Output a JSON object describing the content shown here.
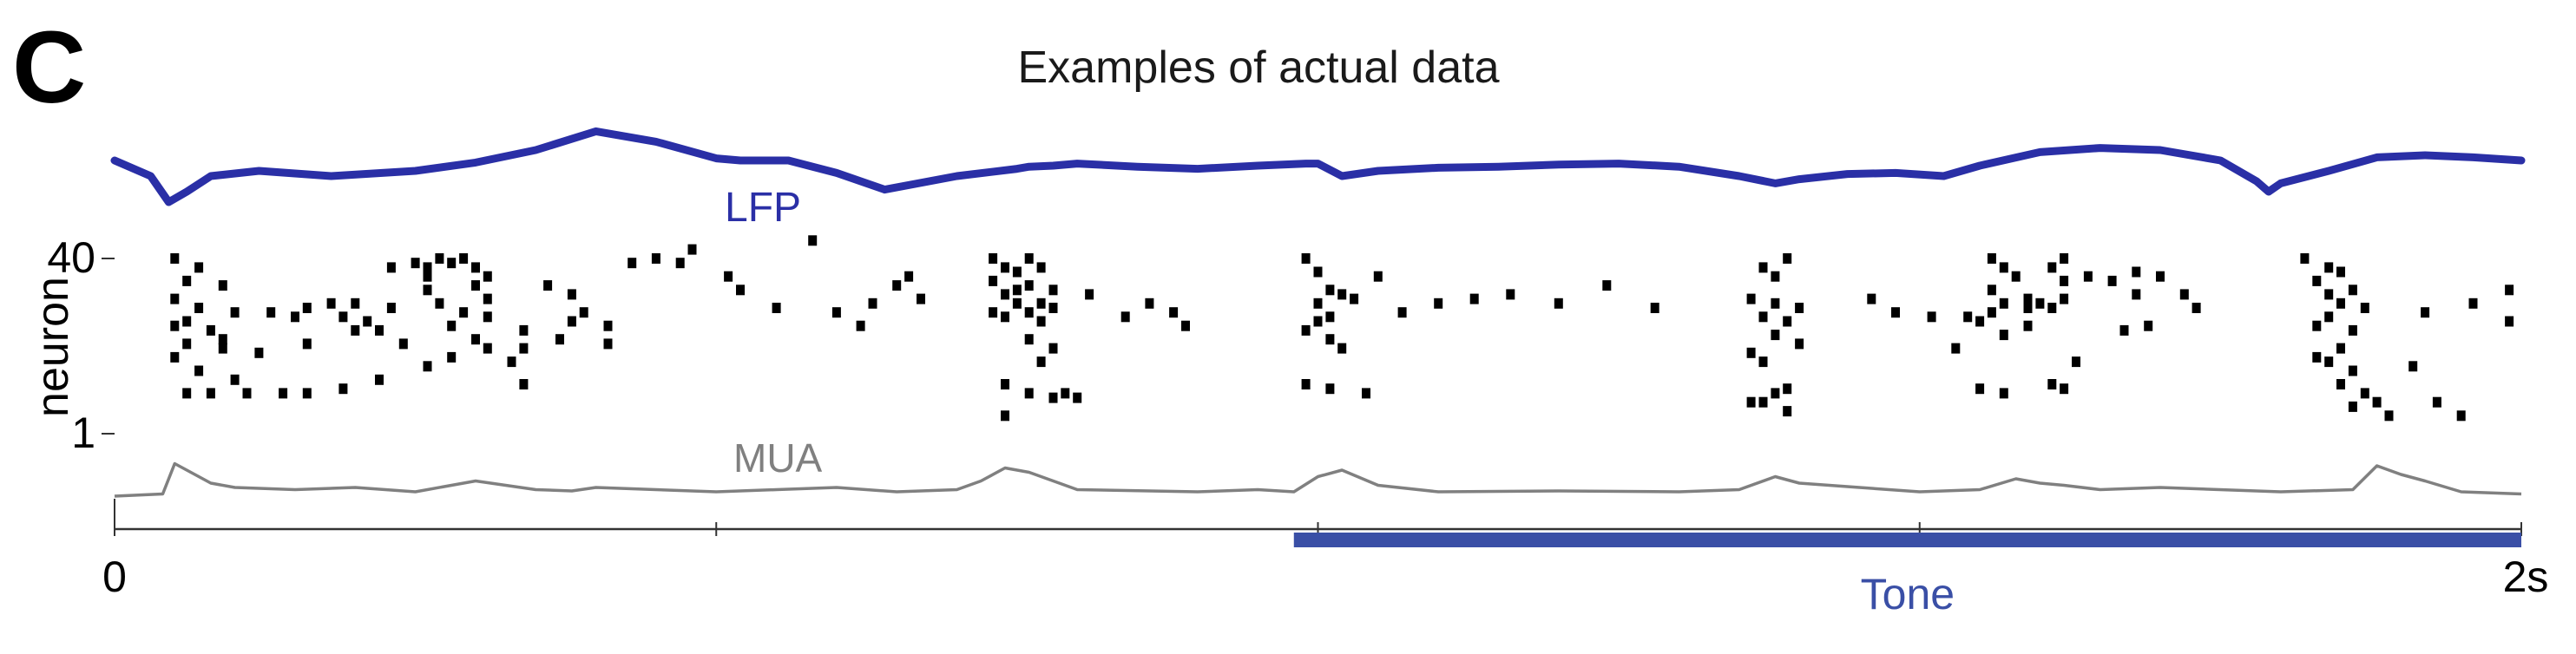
{
  "panel": {
    "letter": "C"
  },
  "chart_data": {
    "type": "line",
    "title": "Examples of actual data",
    "xlabel": "",
    "ylabel": "neuron",
    "xlim": [
      0,
      2
    ],
    "x_unit": "s",
    "x_ticks": [
      0,
      0.5,
      1,
      1.5,
      2
    ],
    "x_tick_labels": [
      "0",
      "",
      "",
      "",
      "2s"
    ],
    "y_ticks": [
      1,
      40
    ],
    "y_tick_labels": [
      "1",
      "40"
    ],
    "grid": false,
    "colors": {
      "lfp": "#2a2fa6",
      "mua": "#808080",
      "raster": "#000000",
      "tone": "#3a4fa6",
      "axis": "#333333"
    },
    "lfp": {
      "label": "LFP",
      "x": [
        0,
        0.03,
        0.045,
        0.06,
        0.08,
        0.12,
        0.18,
        0.25,
        0.3,
        0.35,
        0.4,
        0.45,
        0.5,
        0.52,
        0.56,
        0.6,
        0.64,
        0.7,
        0.75,
        0.76,
        0.78,
        0.8,
        0.85,
        0.9,
        0.95,
        0.99,
        1.0,
        1.02,
        1.05,
        1.1,
        1.15,
        1.2,
        1.25,
        1.3,
        1.35,
        1.38,
        1.4,
        1.44,
        1.48,
        1.52,
        1.55,
        1.6,
        1.65,
        1.7,
        1.75,
        1.78,
        1.79,
        1.8,
        1.84,
        1.88,
        1.92,
        1.96,
        2.0
      ],
      "y": [
        0.0,
        -0.15,
        -0.4,
        -0.3,
        -0.15,
        -0.1,
        -0.15,
        -0.1,
        -0.02,
        0.1,
        0.28,
        0.18,
        0.02,
        0.0,
        0.0,
        -0.12,
        -0.28,
        -0.15,
        -0.08,
        -0.06,
        -0.05,
        -0.03,
        -0.06,
        -0.08,
        -0.05,
        -0.03,
        -0.03,
        -0.15,
        -0.1,
        -0.07,
        -0.06,
        -0.04,
        -0.03,
        -0.06,
        -0.15,
        -0.22,
        -0.18,
        -0.13,
        -0.12,
        -0.15,
        -0.05,
        0.08,
        0.12,
        0.1,
        0.0,
        -0.2,
        -0.3,
        -0.22,
        -0.1,
        0.03,
        0.05,
        0.03,
        0.0
      ]
    },
    "mua": {
      "label": "MUA",
      "x": [
        0,
        0.04,
        0.05,
        0.06,
        0.08,
        0.1,
        0.15,
        0.2,
        0.25,
        0.3,
        0.35,
        0.38,
        0.4,
        0.45,
        0.5,
        0.55,
        0.6,
        0.65,
        0.7,
        0.72,
        0.74,
        0.76,
        0.78,
        0.8,
        0.9,
        0.95,
        0.98,
        1.0,
        1.02,
        1.05,
        1.1,
        1.2,
        1.3,
        1.35,
        1.38,
        1.4,
        1.45,
        1.5,
        1.55,
        1.58,
        1.6,
        1.62,
        1.65,
        1.7,
        1.8,
        1.86,
        1.88,
        1.9,
        1.92,
        1.95,
        2.0
      ],
      "y": [
        0.0,
        0.05,
        0.75,
        0.6,
        0.3,
        0.2,
        0.15,
        0.2,
        0.1,
        0.35,
        0.15,
        0.12,
        0.2,
        0.15,
        0.1,
        0.15,
        0.2,
        0.1,
        0.15,
        0.35,
        0.65,
        0.55,
        0.35,
        0.15,
        0.1,
        0.15,
        0.1,
        0.45,
        0.6,
        0.25,
        0.1,
        0.12,
        0.1,
        0.15,
        0.45,
        0.3,
        0.2,
        0.1,
        0.15,
        0.4,
        0.3,
        0.25,
        0.15,
        0.2,
        0.1,
        0.15,
        0.7,
        0.5,
        0.35,
        0.1,
        0.05
      ]
    },
    "raster": {
      "neurons": [
        1,
        40
      ],
      "spikes": [
        [
          0.05,
          40
        ],
        [
          0.07,
          38
        ],
        [
          0.06,
          35
        ],
        [
          0.09,
          34
        ],
        [
          0.05,
          31
        ],
        [
          0.07,
          29
        ],
        [
          0.1,
          28
        ],
        [
          0.06,
          26
        ],
        [
          0.08,
          24
        ],
        [
          0.06,
          21
        ],
        [
          0.09,
          20
        ],
        [
          0.05,
          18
        ],
        [
          0.07,
          15
        ],
        [
          0.1,
          13
        ],
        [
          0.06,
          10
        ],
        [
          0.08,
          10
        ],
        [
          0.11,
          10
        ],
        [
          0.05,
          25
        ],
        [
          0.09,
          22
        ],
        [
          0.13,
          28
        ],
        [
          0.15,
          27
        ],
        [
          0.16,
          29
        ],
        [
          0.18,
          30
        ],
        [
          0.19,
          27
        ],
        [
          0.21,
          26
        ],
        [
          0.22,
          24
        ],
        [
          0.2,
          24
        ],
        [
          0.24,
          21
        ],
        [
          0.12,
          19
        ],
        [
          0.16,
          21
        ],
        [
          0.2,
          30
        ],
        [
          0.23,
          29
        ],
        [
          0.14,
          10
        ],
        [
          0.16,
          10
        ],
        [
          0.19,
          11
        ],
        [
          0.22,
          13
        ],
        [
          0.26,
          16
        ],
        [
          0.23,
          38
        ],
        [
          0.25,
          39
        ],
        [
          0.26,
          38
        ],
        [
          0.27,
          40
        ],
        [
          0.28,
          39
        ],
        [
          0.29,
          40
        ],
        [
          0.3,
          38
        ],
        [
          0.31,
          36
        ],
        [
          0.3,
          34
        ],
        [
          0.31,
          31
        ],
        [
          0.26,
          33
        ],
        [
          0.27,
          30
        ],
        [
          0.29,
          28
        ],
        [
          0.31,
          27
        ],
        [
          0.28,
          25
        ],
        [
          0.3,
          22
        ],
        [
          0.31,
          20
        ],
        [
          0.28,
          18
        ],
        [
          0.34,
          24
        ],
        [
          0.26,
          36
        ],
        [
          0.36,
          34
        ],
        [
          0.38,
          32
        ],
        [
          0.39,
          28
        ],
        [
          0.38,
          26
        ],
        [
          0.41,
          25
        ],
        [
          0.37,
          22
        ],
        [
          0.41,
          21
        ],
        [
          0.34,
          20
        ],
        [
          0.33,
          17
        ],
        [
          0.34,
          12
        ],
        [
          0.45,
          40
        ],
        [
          0.43,
          39
        ],
        [
          0.48,
          42
        ],
        [
          0.47,
          39
        ],
        [
          0.51,
          36
        ],
        [
          0.52,
          33
        ],
        [
          0.55,
          29
        ],
        [
          0.6,
          28
        ],
        [
          0.63,
          30
        ],
        [
          0.62,
          25
        ],
        [
          0.58,
          44
        ],
        [
          0.66,
          36
        ],
        [
          0.65,
          34
        ],
        [
          0.67,
          31
        ],
        [
          0.73,
          40
        ],
        [
          0.74,
          38
        ],
        [
          0.75,
          37
        ],
        [
          0.76,
          40
        ],
        [
          0.77,
          38
        ],
        [
          0.73,
          35
        ],
        [
          0.74,
          32
        ],
        [
          0.75,
          33
        ],
        [
          0.76,
          34
        ],
        [
          0.78,
          33
        ],
        [
          0.75,
          30
        ],
        [
          0.76,
          28
        ],
        [
          0.77,
          30
        ],
        [
          0.78,
          29
        ],
        [
          0.74,
          27
        ],
        [
          0.77,
          26
        ],
        [
          0.76,
          22
        ],
        [
          0.78,
          20
        ],
        [
          0.77,
          17
        ],
        [
          0.74,
          12
        ],
        [
          0.76,
          10
        ],
        [
          0.78,
          9
        ],
        [
          0.8,
          9
        ],
        [
          0.74,
          5
        ],
        [
          0.79,
          10
        ],
        [
          0.73,
          28
        ],
        [
          0.81,
          32
        ],
        [
          0.84,
          27
        ],
        [
          0.86,
          30
        ],
        [
          0.88,
          28
        ],
        [
          0.89,
          25
        ],
        [
          0.99,
          40
        ],
        [
          1.0,
          37
        ],
        [
          1.01,
          33
        ],
        [
          1.02,
          32
        ],
        [
          1.03,
          31
        ],
        [
          1.0,
          30
        ],
        [
          1.01,
          27
        ],
        [
          1.0,
          26
        ],
        [
          0.99,
          24
        ],
        [
          1.01,
          22
        ],
        [
          1.02,
          20
        ],
        [
          0.99,
          12
        ],
        [
          1.01,
          11
        ],
        [
          1.04,
          10
        ],
        [
          1.05,
          36
        ],
        [
          1.1,
          30
        ],
        [
          1.07,
          28
        ],
        [
          1.13,
          31
        ],
        [
          1.16,
          32
        ],
        [
          1.2,
          30
        ],
        [
          1.24,
          34
        ],
        [
          1.28,
          29
        ],
        [
          1.37,
          38
        ],
        [
          1.39,
          40
        ],
        [
          1.38,
          36
        ],
        [
          1.36,
          31
        ],
        [
          1.38,
          30
        ],
        [
          1.4,
          29
        ],
        [
          1.37,
          27
        ],
        [
          1.39,
          26
        ],
        [
          1.38,
          23
        ],
        [
          1.4,
          21
        ],
        [
          1.36,
          19
        ],
        [
          1.37,
          17
        ],
        [
          1.39,
          11
        ],
        [
          1.38,
          10
        ],
        [
          1.36,
          8
        ],
        [
          1.37,
          8
        ],
        [
          1.39,
          6
        ],
        [
          1.46,
          31
        ],
        [
          1.48,
          28
        ],
        [
          1.51,
          27
        ],
        [
          1.54,
          27
        ],
        [
          1.53,
          20
        ],
        [
          1.57,
          23
        ],
        [
          1.59,
          25
        ],
        [
          1.56,
          40
        ],
        [
          1.57,
          38
        ],
        [
          1.58,
          36
        ],
        [
          1.56,
          33
        ],
        [
          1.59,
          31
        ],
        [
          1.62,
          31
        ],
        [
          1.57,
          30
        ],
        [
          1.6,
          30
        ],
        [
          1.56,
          28
        ],
        [
          1.55,
          26
        ],
        [
          1.59,
          29
        ],
        [
          1.61,
          29
        ],
        [
          1.61,
          38
        ],
        [
          1.62,
          35
        ],
        [
          1.62,
          40
        ],
        [
          1.64,
          36
        ],
        [
          1.68,
          32
        ],
        [
          1.66,
          35
        ],
        [
          1.68,
          37
        ],
        [
          1.67,
          24
        ],
        [
          1.55,
          11
        ],
        [
          1.57,
          10
        ],
        [
          1.61,
          12
        ],
        [
          1.62,
          11
        ],
        [
          1.63,
          17
        ],
        [
          1.7,
          36
        ],
        [
          1.72,
          32
        ],
        [
          1.73,
          29
        ],
        [
          1.69,
          25
        ],
        [
          1.82,
          40
        ],
        [
          1.84,
          38
        ],
        [
          1.85,
          37
        ],
        [
          1.83,
          35
        ],
        [
          1.86,
          33
        ],
        [
          1.84,
          32
        ],
        [
          1.85,
          30
        ],
        [
          1.87,
          29
        ],
        [
          1.84,
          27
        ],
        [
          1.83,
          25
        ],
        [
          1.86,
          24
        ],
        [
          1.85,
          20
        ],
        [
          1.83,
          18
        ],
        [
          1.84,
          17
        ],
        [
          1.86,
          15
        ],
        [
          1.85,
          12
        ],
        [
          1.87,
          10
        ],
        [
          1.88,
          8
        ],
        [
          1.86,
          7
        ],
        [
          1.89,
          5
        ],
        [
          1.91,
          16
        ],
        [
          1.93,
          8
        ],
        [
          1.95,
          5
        ],
        [
          1.92,
          28
        ],
        [
          1.96,
          30
        ],
        [
          1.99,
          33
        ],
        [
          1.99,
          26
        ]
      ]
    },
    "tone": {
      "label": "Tone",
      "start": 0.98,
      "end": 2.0
    }
  }
}
